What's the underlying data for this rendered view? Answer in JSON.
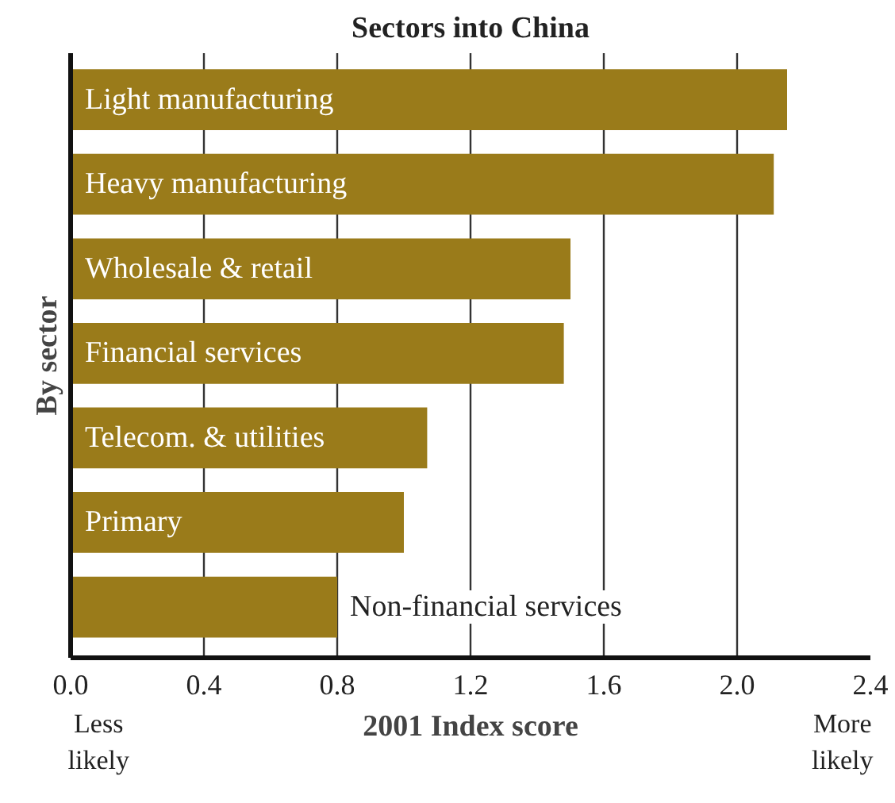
{
  "chart_data": {
    "type": "bar",
    "orientation": "horizontal",
    "title": "Sectors into China",
    "xlabel": "2001 Index score",
    "ylabel": "By sector",
    "categories": [
      "Light manufacturing",
      "Heavy manufacturing",
      "Wholesale & retail",
      "Financial services",
      "Telecom. & utilities",
      "Primary",
      "Non-financial services"
    ],
    "values": [
      2.15,
      2.11,
      1.5,
      1.48,
      1.07,
      1.0,
      0.8
    ],
    "color": "#9a7b1a",
    "xlim": [
      0,
      2.4
    ],
    "xticks": [
      {
        "value": 0,
        "label": "0.0"
      },
      0.4,
      0.8,
      1.2,
      1.6,
      {
        "value": 2,
        "label": "2.0"
      },
      2.4
    ],
    "grid": "x",
    "annotations": [
      "Less\nlikely",
      "More\nlikely"
    ]
  }
}
